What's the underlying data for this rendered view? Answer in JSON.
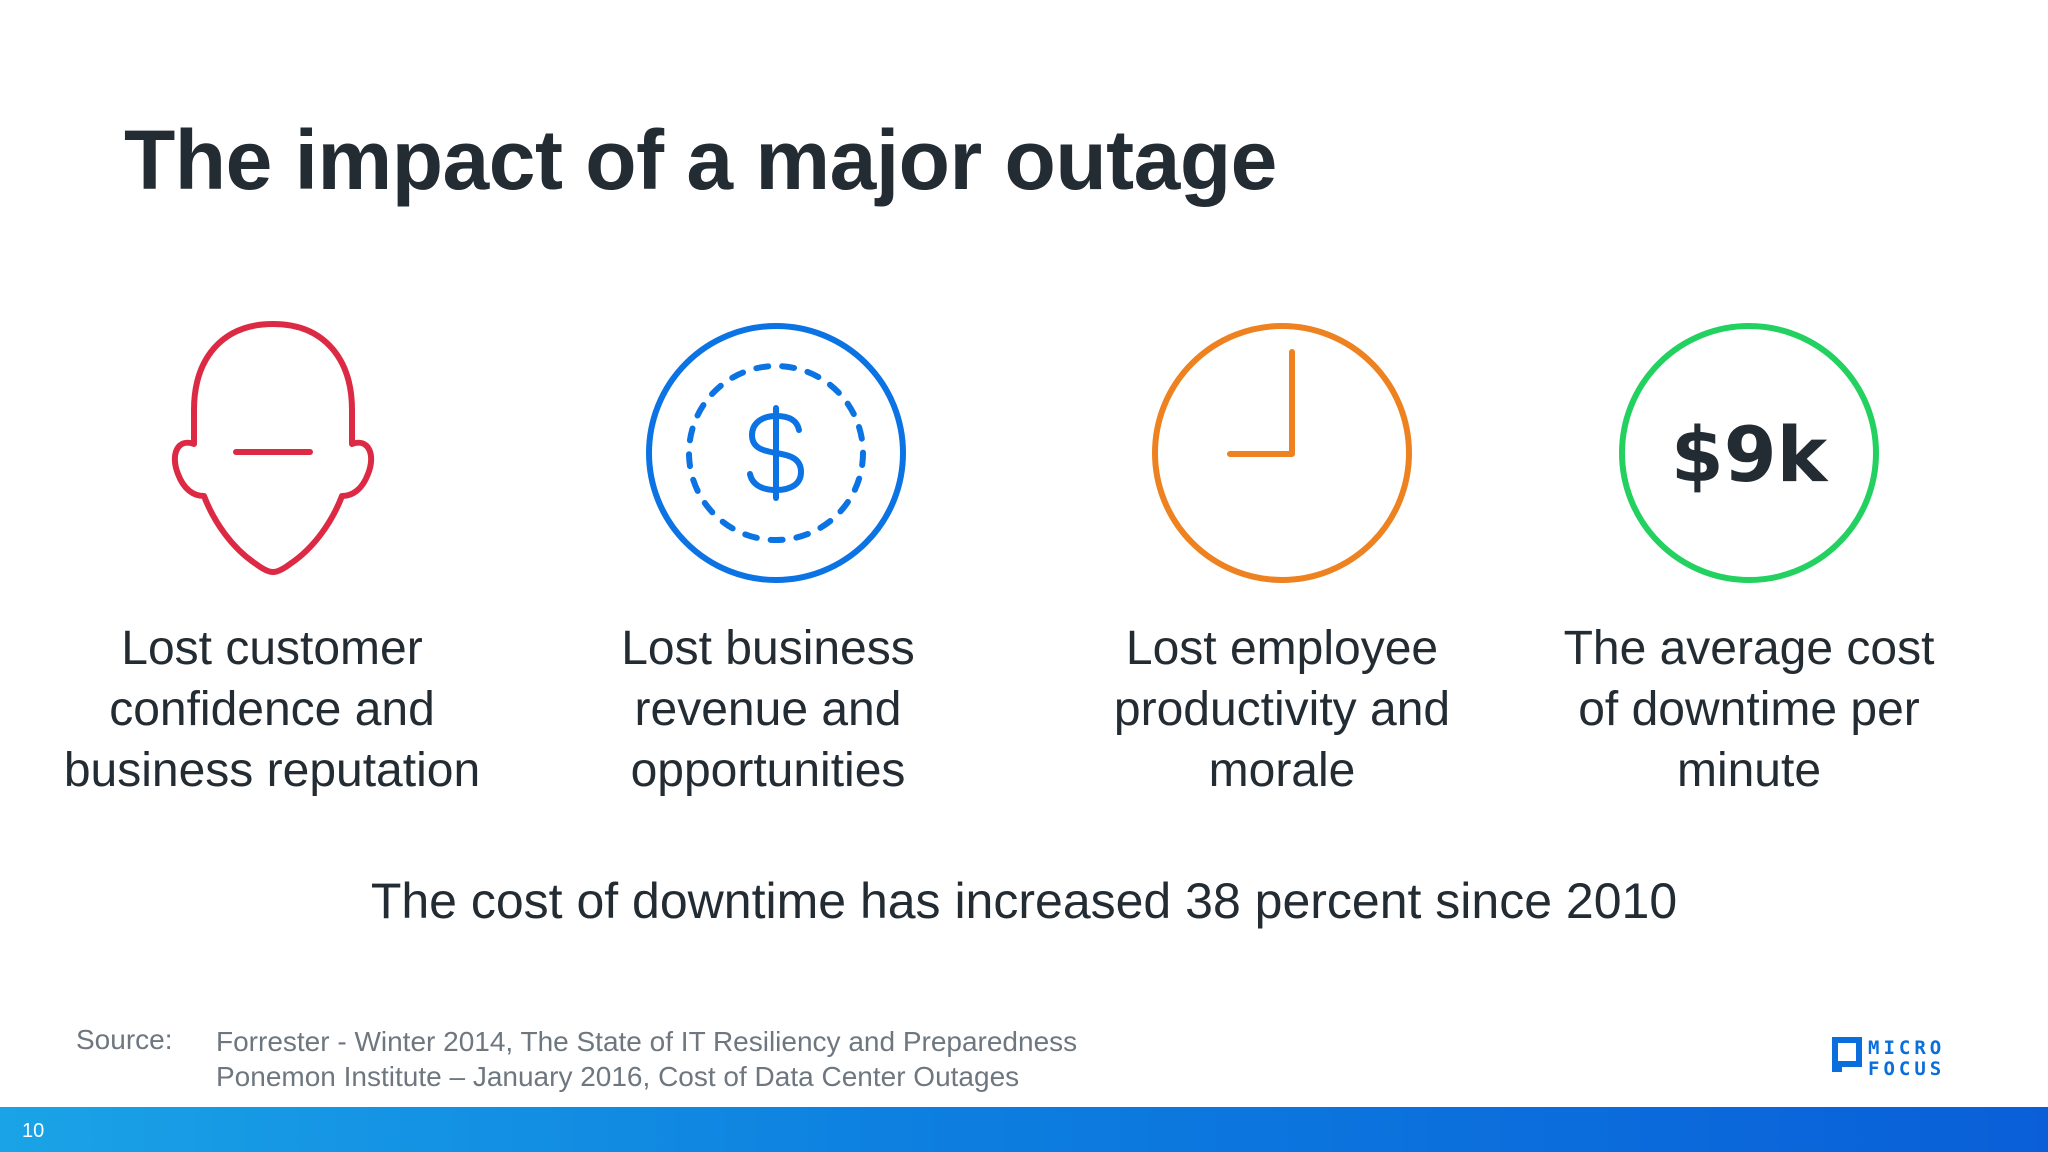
{
  "slide": {
    "title": "The impact of a major outage",
    "items": [
      {
        "icon": "head-icon",
        "color": "#dc2a45",
        "caption": [
          "Lost customer",
          "confidence and",
          "business reputation"
        ]
      },
      {
        "icon": "dollar-coin-icon",
        "color": "#0b73e3",
        "caption": [
          "Lost business",
          "revenue and",
          "opportunities"
        ]
      },
      {
        "icon": "clock-icon",
        "color": "#ee8220",
        "caption": [
          "Lost employee",
          "productivity and",
          "morale"
        ]
      },
      {
        "icon": "cost-circle-icon",
        "color": "#22d160",
        "badge_text": "$9k",
        "caption": [
          "The average cost",
          "of downtime per",
          "minute"
        ]
      }
    ],
    "summary": "The cost of downtime has increased 38 percent since 2010",
    "source": {
      "label": "Source:",
      "lines": [
        "Forrester - Winter 2014, The State of IT Resiliency and Preparedness",
        "Ponemon Institute – January 2016, Cost of Data Center Outages"
      ]
    },
    "logo": {
      "line1": "MICRO",
      "line2": "FOCUS",
      "color": "#0a6fdc"
    },
    "footer": {
      "page_number": "10",
      "bar_color": "#0b7fe0"
    }
  }
}
